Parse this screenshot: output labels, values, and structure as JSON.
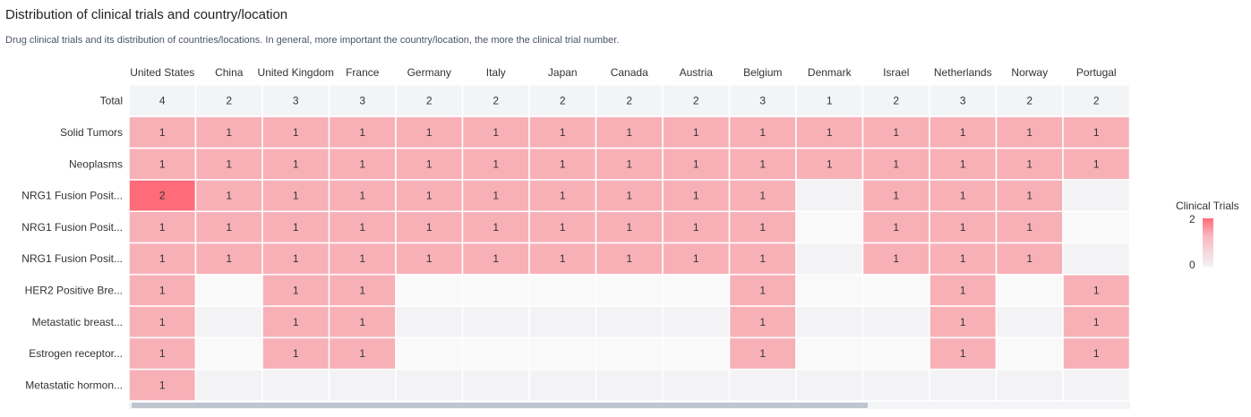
{
  "header": {
    "title": "Distribution of clinical trials and country/location",
    "subtitle": "Drug clinical trials and its distribution of countries/locations. In general, more important the country/location, the more the clinical trial number."
  },
  "legend": {
    "title": "Clinical Trials",
    "max_label": "2",
    "min_label": "0"
  },
  "colors": {
    "high": "#ff6b78",
    "mid": "#f8b0b7",
    "empty_a": "#f3f3f5",
    "empty_b": "#f9f9fa",
    "total_row": "#f3f4f6"
  },
  "chart_data": {
    "type": "heatmap",
    "title": "Distribution of clinical trials and country/location",
    "x": [
      "United States",
      "China",
      "United Kingdom",
      "France",
      "Germany",
      "Italy",
      "Japan",
      "Canada",
      "Austria",
      "Belgium",
      "Denmark",
      "Israel",
      "Netherlands",
      "Norway",
      "Portugal"
    ],
    "y": [
      "Total",
      "Solid Tumors",
      "Neoplasms",
      "NRG1 Fusion Posit...",
      "NRG1 Fusion Posit...",
      "NRG1 Fusion Posit...",
      "HER2 Positive Bre...",
      "Metastatic breast...",
      "Estrogen receptor...",
      "Metastatic hormon..."
    ],
    "values": [
      [
        4,
        2,
        3,
        3,
        2,
        2,
        2,
        2,
        2,
        3,
        1,
        2,
        3,
        2,
        2
      ],
      [
        1,
        1,
        1,
        1,
        1,
        1,
        1,
        1,
        1,
        1,
        1,
        1,
        1,
        1,
        1
      ],
      [
        1,
        1,
        1,
        1,
        1,
        1,
        1,
        1,
        1,
        1,
        1,
        1,
        1,
        1,
        1
      ],
      [
        2,
        1,
        1,
        1,
        1,
        1,
        1,
        1,
        1,
        1,
        null,
        1,
        1,
        1,
        null
      ],
      [
        1,
        1,
        1,
        1,
        1,
        1,
        1,
        1,
        1,
        1,
        null,
        1,
        1,
        1,
        null
      ],
      [
        1,
        1,
        1,
        1,
        1,
        1,
        1,
        1,
        1,
        1,
        null,
        1,
        1,
        1,
        null
      ],
      [
        1,
        null,
        1,
        1,
        null,
        null,
        null,
        null,
        null,
        1,
        null,
        null,
        1,
        null,
        1
      ],
      [
        1,
        null,
        1,
        1,
        null,
        null,
        null,
        null,
        null,
        1,
        null,
        null,
        1,
        null,
        1
      ],
      [
        1,
        null,
        1,
        1,
        null,
        null,
        null,
        null,
        null,
        1,
        null,
        null,
        1,
        null,
        1
      ],
      [
        1,
        null,
        null,
        null,
        null,
        null,
        null,
        null,
        null,
        null,
        null,
        null,
        null,
        null,
        null
      ]
    ],
    "colorbar": {
      "title": "Clinical Trials",
      "range": [
        0,
        2
      ]
    }
  }
}
